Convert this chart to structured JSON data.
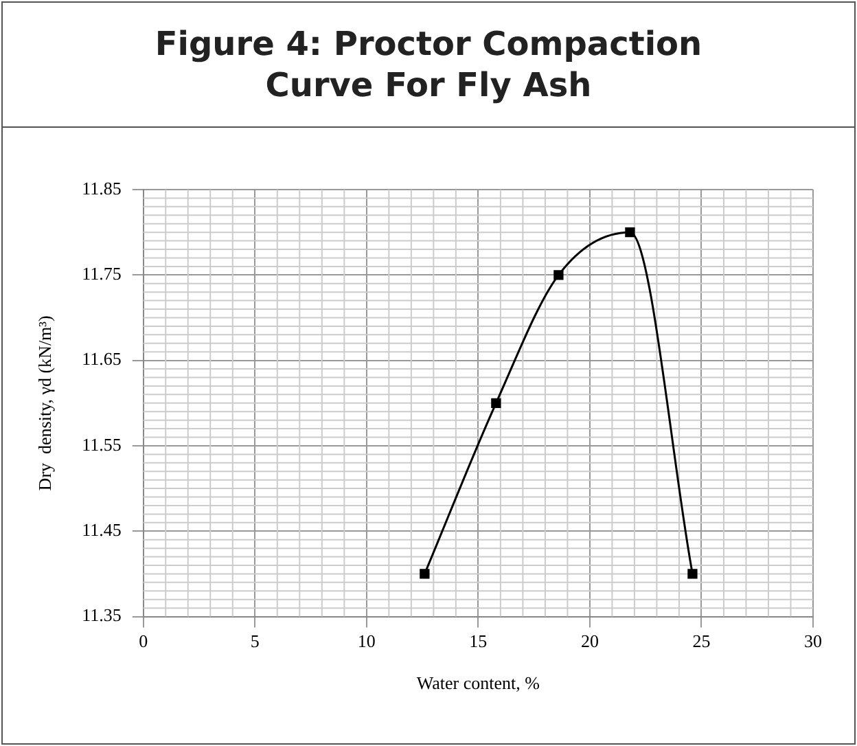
{
  "chart_data": {
    "type": "line",
    "title": "Figure 4: Proctor Compaction Curve For Fly Ash",
    "xlabel": "Water content, %",
    "ylabel": "Dry  density, γd (kN/m³)",
    "x": [
      12.6,
      15.8,
      18.6,
      21.8,
      24.6
    ],
    "series": [
      {
        "color": "#000000",
        "values": [
          11.4,
          11.6,
          11.75,
          11.8,
          11.4
        ]
      }
    ],
    "xlim": [
      0,
      30
    ],
    "xticks": [
      0,
      5,
      10,
      15,
      20,
      25,
      30
    ],
    "ylim": [
      11.35,
      11.85
    ],
    "yticks": [
      11.35,
      11.45,
      11.55,
      11.65,
      11.75,
      11.85
    ],
    "grid": true,
    "legend": false,
    "marker": "square",
    "line_style": "solid"
  }
}
